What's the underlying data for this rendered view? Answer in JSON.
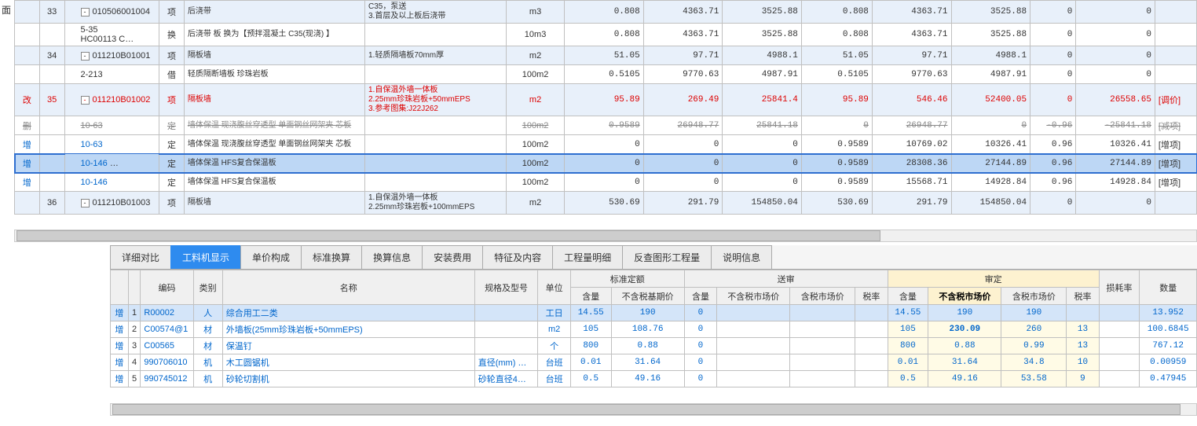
{
  "sidebar_char": "面",
  "top_rows": [
    {
      "cls": "blue-bg",
      "badge": "",
      "rownum": "33",
      "tree": {
        "toggle": "-",
        "code": "010506001004"
      },
      "type": "项",
      "name": "后浇带",
      "desc": "C35，泵送\n3.首层及以上板后浇带",
      "unit": "m3",
      "c": [
        "0.808",
        "4363.71",
        "3525.88",
        "0.808",
        "4363.71",
        "3525.88",
        "0",
        "0"
      ],
      "tag": ""
    },
    {
      "cls": "",
      "badge": "",
      "rownum": "",
      "tree": {
        "code": "5-35\nHC00113 C…"
      },
      "type": "换",
      "name": "后浇带 板  换为【预拌混凝土 C35(现浇) 】",
      "desc": "",
      "unit": "10m3",
      "c": [
        "0.808",
        "4363.71",
        "3525.88",
        "0.808",
        "4363.71",
        "3525.88",
        "0",
        "0"
      ],
      "tag": ""
    },
    {
      "cls": "blue-bg",
      "badge": "",
      "rownum": "34",
      "tree": {
        "toggle": "-",
        "code": "011210B01001"
      },
      "type": "项",
      "name": "隔板墙",
      "desc": "1.轻质隔墙板70mm厚",
      "unit": "m2",
      "c": [
        "51.05",
        "97.71",
        "4988.1",
        "51.05",
        "97.71",
        "4988.1",
        "0",
        "0"
      ],
      "tag": ""
    },
    {
      "cls": "",
      "badge": "",
      "rownum": "",
      "tree": {
        "code": "2-213"
      },
      "type": "借",
      "name": "轻质隔断墙板 珍珠岩板",
      "desc": "",
      "unit": "100m2",
      "c": [
        "0.5105",
        "9770.63",
        "4987.91",
        "0.5105",
        "9770.63",
        "4987.91",
        "0",
        "0"
      ],
      "tag": ""
    },
    {
      "cls": "blue-bg red",
      "badge": "改",
      "badge_color": "#d00",
      "rownum": "35",
      "tree": {
        "toggle": "-",
        "code": "011210B01002"
      },
      "type": "项",
      "name": "隔板墙",
      "desc": "1.自保温外墙一体板\n2.25mm珍珠岩板+50mmEPS\n3.参考图集:J22J262",
      "unit": "m2",
      "c": [
        "95.89",
        "269.49",
        "25841.4",
        "95.89",
        "546.46",
        "52400.05",
        "0",
        "26558.65"
      ],
      "tag": "[调价]"
    },
    {
      "cls": "strike",
      "badge": "删",
      "badge_color": "#888",
      "rownum": "",
      "tree": {
        "code": "10-63"
      },
      "type": "定",
      "name": "墙体保温 现浇腹丝穿透型 单面钢丝网架夹 芯板",
      "desc": "",
      "unit": "100m2",
      "c": [
        "0.9589",
        "26948.77",
        "25841.18",
        "0",
        "26948.77",
        "0",
        "-0.96",
        "-25841.18"
      ],
      "tag": "[减项]"
    },
    {
      "cls": "",
      "badge": "增",
      "badge_color": "#0066cc",
      "rownum": "",
      "tree": {
        "code": "10-63",
        "link": true
      },
      "type": "定",
      "name": "墙体保温 现浇腹丝穿透型 单面钢丝网架夹 芯板",
      "desc": "",
      "unit": "100m2",
      "c": [
        "0",
        "0",
        "0",
        "0.9589",
        "10769.02",
        "10326.41",
        "0.96",
        "10326.41"
      ],
      "tag": "[增项]"
    },
    {
      "cls": "selected",
      "badge": "增",
      "badge_color": "#0066cc",
      "rownum": "",
      "tree": {
        "code": "10-146",
        "link": true,
        "dots": true
      },
      "type": "定",
      "name": "墙体保温 HFS复合保温板",
      "desc": "",
      "unit": "100m2",
      "c": [
        "0",
        "0",
        "0",
        "0.9589",
        "28308.36",
        "27144.89",
        "0.96",
        "27144.89"
      ],
      "tag": "[增项]"
    },
    {
      "cls": "",
      "badge": "增",
      "badge_color": "#0066cc",
      "rownum": "",
      "tree": {
        "code": "10-146",
        "link": true
      },
      "type": "定",
      "name": "墙体保温 HFS复合保温板",
      "desc": "",
      "unit": "100m2",
      "c": [
        "0",
        "0",
        "0",
        "0.9589",
        "15568.71",
        "14928.84",
        "0.96",
        "14928.84"
      ],
      "tag": "[增项]"
    },
    {
      "cls": "blue-bg",
      "badge": "",
      "rownum": "36",
      "tree": {
        "toggle": "-",
        "code": "011210B01003"
      },
      "type": "项",
      "name": "隔板墙",
      "desc": "1.自保温外墙一体板\n2.25mm珍珠岩板+100mmEPS",
      "unit": "m2",
      "c": [
        "530.69",
        "291.79",
        "154850.04",
        "530.69",
        "291.79",
        "154850.04",
        "0",
        "0"
      ],
      "tag": ""
    }
  ],
  "tabs": [
    "详细对比",
    "工料机显示",
    "单价构成",
    "标准换算",
    "换算信息",
    "安装费用",
    "特征及内容",
    "工程量明细",
    "反查图形工程量",
    "说明信息"
  ],
  "active_tab": 1,
  "bottom_headers": {
    "row1": [
      "",
      "",
      "编码",
      "类别",
      "名称",
      "规格及型号",
      "单位",
      {
        "label": "标准定额",
        "span": 2
      },
      {
        "label": "送审",
        "span": 4
      },
      {
        "label": "审定",
        "span": 4,
        "cls": "approval"
      },
      "损耗率",
      "数量"
    ],
    "row2": [
      "含量",
      "不含税基期价",
      "含量",
      "不含税市场价",
      "含税市场价",
      "税率",
      "含量",
      {
        "label": "不含税市场价",
        "cls": "highlight"
      },
      "含税市场价",
      "税率"
    ]
  },
  "bottom_rows": [
    {
      "sel": true,
      "badge": "增",
      "i": "1",
      "code": "R00002",
      "cat": "人",
      "name": "综合用工二类",
      "spec": "",
      "unit": "工日",
      "std_qty": "14.55",
      "std_price": "190",
      "sub_qty": "0",
      "sub_p1": "",
      "sub_p2": "",
      "sub_tax": "",
      "ap_qty": "14.55",
      "ap_p1": "190",
      "ap_p2": "190",
      "ap_tax": "",
      "loss": "",
      "amt": "13.952"
    },
    {
      "badge": "增",
      "i": "2",
      "code": "C00574@1",
      "cat": "材",
      "name": "外墙板(25mm珍珠岩板+50mmEPS)",
      "spec": "",
      "unit": "m2",
      "std_qty": "105",
      "std_price": "108.76",
      "sub_qty": "0",
      "sub_p1": "",
      "sub_p2": "",
      "sub_tax": "",
      "ap_qty": "105",
      "ap_p1": "230.09",
      "ap_p1_bold": true,
      "ap_p2": "260",
      "ap_tax": "13",
      "loss": "",
      "amt": "100.6845"
    },
    {
      "badge": "增",
      "i": "3",
      "code": "C00565",
      "cat": "材",
      "name": "保温钉",
      "spec": "",
      "unit": "个",
      "std_qty": "800",
      "std_price": "0.88",
      "sub_qty": "0",
      "sub_p1": "",
      "sub_p2": "",
      "sub_tax": "",
      "ap_qty": "800",
      "ap_p1": "0.88",
      "ap_p2": "0.99",
      "ap_tax": "13",
      "loss": "",
      "amt": "767.12"
    },
    {
      "badge": "增",
      "i": "4",
      "code": "990706010",
      "cat": "机",
      "name": "木工圆锯机",
      "spec": "直径(mm) …",
      "unit": "台班",
      "std_qty": "0.01",
      "std_price": "31.64",
      "sub_qty": "0",
      "sub_p1": "",
      "sub_p2": "",
      "sub_tax": "",
      "ap_qty": "0.01",
      "ap_p1": "31.64",
      "ap_p2": "34.8",
      "ap_tax": "10",
      "loss": "",
      "amt": "0.00959"
    },
    {
      "badge": "增",
      "i": "5",
      "code": "990745012",
      "cat": "机",
      "name": "砂轮切割机",
      "spec": "砂轮直径4…",
      "unit": "台班",
      "std_qty": "0.5",
      "std_price": "49.16",
      "sub_qty": "0",
      "sub_p1": "",
      "sub_p2": "",
      "sub_tax": "",
      "ap_qty": "0.5",
      "ap_p1": "49.16",
      "ap_p2": "53.58",
      "ap_tax": "9",
      "loss": "",
      "amt": "0.47945"
    }
  ],
  "colors": {
    "blue": "#0066cc",
    "red": "#d00",
    "sel_row": "#bdd7f5",
    "tab_active": "#2e8bef"
  }
}
